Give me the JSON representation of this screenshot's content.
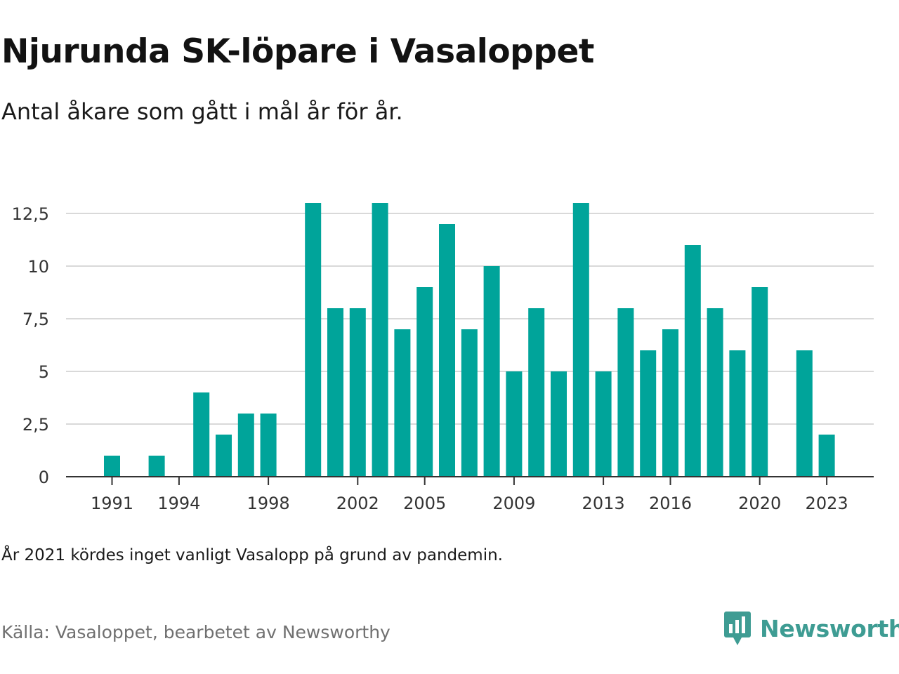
{
  "header": {
    "title": "Njurunda SK-löpare i Vasaloppet",
    "subtitle": "Antal åkare som gått i mål år för år."
  },
  "footer": {
    "note": "År 2021 kördes inget vanligt Vasalopp på grund av pandemin.",
    "source": "Källa: Vasaloppet, bearbetet av Newsworthy",
    "brand": "Newsworthy"
  },
  "colors": {
    "bar": "#00a49a",
    "grid": "#d9d9d9",
    "axis": "#333333",
    "brand": "#3e9c93"
  },
  "icons": {
    "brand_logo": "newsworthy-logo-icon"
  },
  "chart_data": {
    "type": "bar",
    "title": "Njurunda SK-löpare i Vasaloppet",
    "subtitle": "Antal åkare som gått i mål år för år.",
    "xlabel": "",
    "ylabel": "",
    "ylim": [
      0,
      13
    ],
    "yticks": [
      0,
      2.5,
      5,
      7.5,
      10,
      12.5
    ],
    "ytick_labels": [
      "0",
      "2,5",
      "5",
      "7,5",
      "10",
      "12,5"
    ],
    "xtick_labels": [
      "1991",
      "1994",
      "1998",
      "2002",
      "2005",
      "2009",
      "2013",
      "2016",
      "2020",
      "2023"
    ],
    "grid": true,
    "categories": [
      1990,
      1991,
      1992,
      1993,
      1994,
      1995,
      1996,
      1997,
      1998,
      1999,
      2000,
      2001,
      2002,
      2003,
      2004,
      2005,
      2006,
      2007,
      2008,
      2009,
      2010,
      2011,
      2012,
      2013,
      2014,
      2015,
      2016,
      2017,
      2018,
      2019,
      2020,
      2021,
      2022,
      2023,
      2024
    ],
    "values": [
      0,
      1,
      0,
      1,
      0,
      4,
      2,
      3,
      3,
      0,
      13,
      8,
      8,
      13,
      7,
      9,
      12,
      7,
      10,
      5,
      8,
      5,
      13,
      5,
      8,
      6,
      7,
      11,
      8,
      6,
      9,
      0,
      6,
      2,
      0
    ]
  }
}
